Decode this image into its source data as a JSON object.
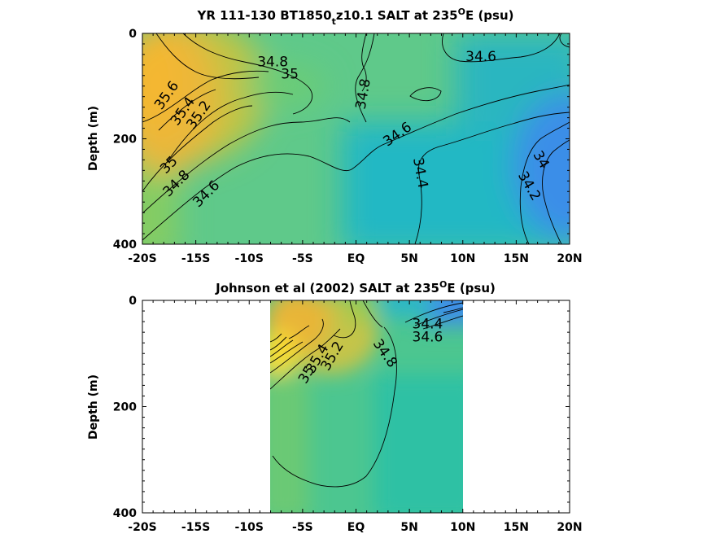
{
  "chart_data": [
    {
      "type": "heatmap",
      "title": {
        "pre": "YR 111-130 BT1850",
        "sub": "t",
        "mid": "z10.1 SALT at 235",
        "sup": "O",
        "post": "E (psu)"
      },
      "ylabel": "Depth (m)",
      "xlim": [
        -20,
        20
      ],
      "ylim": [
        0,
        400
      ],
      "y_reversed": true,
      "x_ticks": [
        -20,
        -15,
        -10,
        -5,
        0,
        5,
        10,
        15,
        20
      ],
      "x_tick_labels": [
        "-20S",
        "-15S",
        "-10S",
        "-5S",
        "EQ",
        "5N",
        "10N",
        "15N",
        "20N"
      ],
      "y_ticks": [
        0,
        200,
        400
      ],
      "y_tick_labels": [
        "0",
        "200",
        "400"
      ],
      "contour_labels": [
        {
          "text": "34.8",
          "x": -7.8,
          "y": 55,
          "rot": 0
        },
        {
          "text": "35",
          "x": -6.2,
          "y": 78,
          "rot": 0
        },
        {
          "text": "35.6",
          "x": -17.7,
          "y": 118,
          "rot": -55
        },
        {
          "text": "35.4",
          "x": -16.2,
          "y": 148,
          "rot": -55
        },
        {
          "text": "35.2",
          "x": -14.7,
          "y": 155,
          "rot": -55
        },
        {
          "text": "35",
          "x": -17.5,
          "y": 250,
          "rot": -45
        },
        {
          "text": "34.8",
          "x": -16.8,
          "y": 285,
          "rot": -45
        },
        {
          "text": "34.6",
          "x": -14.0,
          "y": 305,
          "rot": -45
        },
        {
          "text": "34.8",
          "x": 0.7,
          "y": 115,
          "rot": -80
        },
        {
          "text": "34.6",
          "x": 3.9,
          "y": 192,
          "rot": -35
        },
        {
          "text": "34.6",
          "x": 11.7,
          "y": 45,
          "rot": 0
        },
        {
          "text": "34.4",
          "x": 6.0,
          "y": 265,
          "rot": 80
        },
        {
          "text": "34",
          "x": 17.3,
          "y": 240,
          "rot": 60
        },
        {
          "text": "34.2",
          "x": 16.2,
          "y": 290,
          "rot": 60
        }
      ]
    },
    {
      "type": "heatmap",
      "title": {
        "pre": "Johnson et al (2002) SALT at 235",
        "sup": "O",
        "post": "E (psu)"
      },
      "ylabel": "Depth (m)",
      "xlim": [
        -20,
        20
      ],
      "ylim": [
        0,
        400
      ],
      "y_reversed": true,
      "data_extent_x": [
        -8,
        10
      ],
      "data_extent_y": [
        0,
        400
      ],
      "x_ticks": [
        -20,
        -15,
        -10,
        -5,
        0,
        5,
        10,
        15,
        20
      ],
      "x_tick_labels": [
        "-20S",
        "-15S",
        "-10S",
        "-5S",
        "EQ",
        "5N",
        "10N",
        "15N",
        "20N"
      ],
      "y_ticks": [
        0,
        200,
        400
      ],
      "y_tick_labels": [
        "0",
        "200",
        "400"
      ],
      "contour_labels": [
        {
          "text": "35.4",
          "x": -3.6,
          "y": 110,
          "rot": -60
        },
        {
          "text": "35.2",
          "x": -2.2,
          "y": 105,
          "rot": -60
        },
        {
          "text": "35",
          "x": -4.6,
          "y": 140,
          "rot": -60
        },
        {
          "text": "34.8",
          "x": 2.7,
          "y": 100,
          "rot": 55
        },
        {
          "text": "34.4",
          "x": 6.7,
          "y": 45,
          "rot": 0
        },
        {
          "text": "34.6",
          "x": 6.7,
          "y": 70,
          "rot": 0
        }
      ]
    }
  ]
}
